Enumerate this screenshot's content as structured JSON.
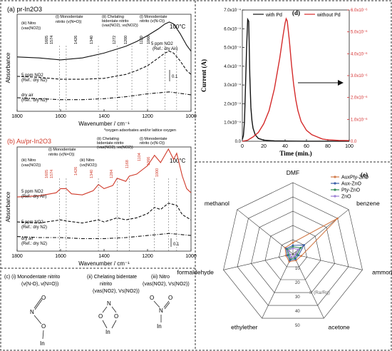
{
  "chart_data": [
    {
      "panel": "(a)",
      "type": "line",
      "title": "pr-In2O3",
      "temperature": "100°C",
      "xlabel": "Wavenumber / cm⁻¹",
      "ylabel": "Absorbance",
      "xlim": [
        1800,
        1000
      ],
      "x_ticks": [
        "1800",
        "1600",
        "1400",
        "1200",
        "1000"
      ],
      "scale_bar": "0.1",
      "series": [
        {
          "name": "5 ppm NO2 (Ref.: dry Air)",
          "style": "solid",
          "x": [
            1800,
            1700,
            1600,
            1500,
            1400,
            1300,
            1250,
            1200,
            1150,
            1120,
            1100,
            1080,
            1050,
            1020,
            1000
          ],
          "y": [
            0.56,
            0.55,
            0.53,
            0.55,
            0.6,
            0.67,
            0.72,
            0.78,
            0.85,
            0.9,
            0.92,
            0.9,
            0.8,
            0.68,
            0.62
          ]
        },
        {
          "name": "5 ppm NO2 (Ref.: dry N2)",
          "style": "dashed",
          "x": [
            1800,
            1700,
            1600,
            1500,
            1400,
            1300,
            1250,
            1200,
            1150,
            1120,
            1100,
            1080,
            1050,
            1020,
            1000
          ],
          "y": [
            0.36,
            0.35,
            0.33,
            0.33,
            0.34,
            0.38,
            0.42,
            0.47,
            0.55,
            0.6,
            0.62,
            0.6,
            0.52,
            0.42,
            0.38
          ]
        },
        {
          "name": "dry air (Ref.: dry N2)",
          "style": "dashdot",
          "x": [
            1800,
            1700,
            1600,
            1500,
            1400,
            1300,
            1200,
            1100,
            1000
          ],
          "y": [
            0.14,
            0.13,
            0.12,
            0.12,
            0.13,
            0.15,
            0.18,
            0.2,
            0.17
          ]
        }
      ],
      "annotations": [
        {
          "label": "(i) Monodentate nitrito (v(N=O))",
          "peaks": [
            "1426",
            "1340"
          ]
        },
        {
          "label": "(ii) Chelating bidentate nitrito (vas(NO2), vs(NO2))",
          "peaks": [
            "1272",
            "1200"
          ]
        },
        {
          "label": "(i) Monodentate nitrito (v(N-O))",
          "peaks": [
            "1120",
            "1066"
          ]
        },
        {
          "label": "(iii) Nitro (vas(NO2))",
          "peaks": [
            "1605",
            "1574"
          ]
        }
      ],
      "labels": {
        "title_prefix": "(a)",
        "t1": "(iii) Nitro",
        "t2": "(vas(NO2))",
        "t3": "(i) Monodentate",
        "t4": "nitrito (v(N=O))",
        "t5": "(ii) Chelating",
        "t6": "bidentate nitrito",
        "t7": "(vas(NO2), vs(NO2))",
        "t8": "(i) Monodentate",
        "t9": "nitrito (v(N-O))",
        "p1": "1605",
        "p2": "1574",
        "p3": "1426",
        "p4": "1340",
        "p5": "1272",
        "p6": "1200",
        "p7": "1120",
        "p8": "1066",
        "s1a": "5 ppm NO2",
        "s1b": "(Ref.: dry Air)",
        "s2a": "5 ppm NO2",
        "s2b": "(Ref.: dry N2)",
        "s3a": "dry air",
        "s3b": "(Ref.: dry N2)"
      }
    },
    {
      "panel": "(b)",
      "type": "line",
      "title": "Au/pr-In2O3",
      "temperature": "100°C",
      "note": "*oxygen adsorbates and/or lattice oxygen",
      "xlabel": "Wavenumber / cm⁻¹",
      "ylabel": "Absorbance",
      "xlim": [
        1800,
        1000
      ],
      "x_ticks": [
        "1800",
        "1600",
        "1400",
        "1200",
        "1000"
      ],
      "scale_bar": "0.1",
      "series": [
        {
          "name": "5 ppm NO2 (Ref.: dry Air)",
          "style": "solid",
          "color": "#d03a2a",
          "x": [
            1800,
            1700,
            1620,
            1600,
            1574,
            1550,
            1500,
            1450,
            1426,
            1400,
            1360,
            1340,
            1300,
            1284,
            1250,
            1200,
            1168,
            1140,
            1104,
            1080,
            1066,
            1040,
            1020,
            1000
          ],
          "y": [
            0.52,
            0.53,
            0.56,
            0.6,
            0.6,
            0.55,
            0.54,
            0.58,
            0.64,
            0.6,
            0.63,
            0.7,
            0.67,
            0.72,
            0.74,
            0.82,
            0.92,
            0.85,
            0.98,
            0.88,
            0.94,
            0.72,
            0.6,
            0.56
          ]
        },
        {
          "name": "5 ppm NO2 (Ref.: dry N2)",
          "style": "dashed",
          "x": [
            1800,
            1700,
            1600,
            1574,
            1500,
            1426,
            1400,
            1340,
            1300,
            1250,
            1200,
            1168,
            1140,
            1104,
            1066,
            1040,
            1000
          ],
          "y": [
            0.28,
            0.27,
            0.3,
            0.29,
            0.27,
            0.3,
            0.28,
            0.32,
            0.3,
            0.32,
            0.36,
            0.42,
            0.4,
            0.46,
            0.44,
            0.35,
            0.3
          ]
        },
        {
          "name": "dry air (Ref.: dry N2)",
          "style": "dashdot",
          "x": [
            1800,
            1700,
            1600,
            1500,
            1400,
            1300,
            1200,
            1100,
            1000
          ],
          "y": [
            0.14,
            0.13,
            0.13,
            0.12,
            0.12,
            0.13,
            0.15,
            0.17,
            0.15
          ]
        }
      ],
      "labels": {
        "title_prefix": "(b)",
        "t1": "(iii) Nitro",
        "t2": "(vas(NO2))",
        "t3": "(i) Monodentate",
        "t4": "nitrito (v(N=O))",
        "t5": "(ii) Chelating",
        "t6": "bidentate nitrito",
        "t7": "(vas(NO2), vs(NO2))",
        "t8": "(i) Monodentate",
        "t9": "nitrito (v(N-O))",
        "t10": "(iii) Nitro",
        "t11": "(vs(NO2))",
        "p1": "1605",
        "p2": "1574",
        "p3": "1426",
        "p4": "1340",
        "p5": "1284",
        "p6": "1168",
        "p7": "1104",
        "p8": "1066",
        "p9": "1000",
        "s1a": "5 ppm NO2",
        "s1b": "(Ref.: dry Air)",
        "s2a": "5 ppm NO2",
        "s2b": "(Ref.: dry N2)",
        "s3a": "dry air",
        "s3b": "(Ref.: dry N2)"
      }
    },
    {
      "panel": "(d)",
      "type": "line",
      "xlabel": "Time (min.)",
      "ylabel": "Current (A)",
      "xlim": [
        0,
        100
      ],
      "ylim": [
        0,
        0.0007
      ],
      "y2lim": [
        0,
        6e-06
      ],
      "x_ticks": [
        "0",
        "20",
        "40",
        "60",
        "80",
        "100"
      ],
      "y_ticks": [
        "0.0",
        "1.0x10⁻⁴",
        "2.0x10⁻⁴",
        "3.0x10⁻⁴",
        "4.0x10⁻⁴",
        "5.0x10⁻⁴",
        "6.0x10⁻⁴",
        "7.0x10⁻⁴"
      ],
      "y2_ticks": [
        "0.0",
        "1.0x10⁻⁶",
        "2.0x10⁻⁶",
        "3.0x10⁻⁶",
        "4.0x10⁻⁶",
        "5.0x10⁻⁶",
        "6.0x10⁻⁶"
      ],
      "legend_position": "top",
      "series": [
        {
          "name": "with Pd",
          "color": "#111111",
          "axis": "left",
          "x": [
            0,
            1,
            2,
            3,
            4,
            5,
            6,
            7,
            8,
            9,
            10,
            12,
            15,
            20,
            30,
            40,
            60,
            80,
            100
          ],
          "y": [
            1e-05,
            3e-05,
            0.0001,
            0.0003,
            0.0005,
            0.00065,
            0.00064,
            0.00035,
            0.00018,
            0.00011,
            7e-05,
            3.5e-05,
            1.5e-05,
            6e-06,
            2e-06,
            1e-06,
            5e-07,
            3e-07,
            2e-07
          ]
        },
        {
          "name": "without Pd",
          "color": "#d42a2a",
          "axis": "right",
          "x": [
            0,
            5,
            10,
            15,
            20,
            25,
            30,
            35,
            38,
            40,
            41,
            42,
            44,
            46,
            48,
            50,
            52,
            55,
            60,
            65,
            70,
            75,
            80,
            90,
            100
          ],
          "y": [
            0.0,
            5e-08,
            2e-07,
            4e-07,
            8e-07,
            1.4e-06,
            2.4e-06,
            3.8e-06,
            4.8e-06,
            5.4e-06,
            5.6e-06,
            5.5e-06,
            4.6e-06,
            3.5e-06,
            2.6e-06,
            1.9e-06,
            1.4e-06,
            9e-07,
            5e-07,
            3e-07,
            2e-07,
            1e-07,
            7e-08,
            4e-08,
            3e-08
          ]
        }
      ],
      "labels": {
        "title_prefix": "(d)"
      }
    },
    {
      "panel": "(e)",
      "type": "radar",
      "title": "",
      "axis_label": "S (Ra/Rg)",
      "categories": [
        "DMF",
        "benzene",
        "ammonia",
        "acetone",
        "ethylether",
        "formaldehyde",
        "methanol"
      ],
      "radial_ticks": [
        "0",
        "10",
        "20",
        "30",
        "40",
        "50"
      ],
      "rlim": [
        0,
        50
      ],
      "legend_position": "top-right",
      "series": [
        {
          "name": "AuxPty-ZnO",
          "color": "#d17b4a",
          "values": [
            8,
            40,
            6,
            5,
            6,
            5,
            7
          ]
        },
        {
          "name": "Aux-ZnO",
          "color": "#3a5fa8",
          "values": [
            6,
            10,
            4,
            4,
            5,
            4,
            6
          ]
        },
        {
          "name": "Pty-ZnO",
          "color": "#2e8b57",
          "values": [
            5,
            7,
            3,
            3,
            4,
            3,
            5
          ]
        },
        {
          "name": "ZnO",
          "color": "#9b7fd4",
          "values": [
            4,
            5,
            2,
            2,
            3,
            2,
            4
          ]
        }
      ],
      "labels": {
        "title_prefix": "(e)"
      }
    },
    {
      "panel": "(c)",
      "type": "diagram",
      "labels": {
        "title_prefix": "(c)",
        "i1": "(i) Monodentate nitrito",
        "i2": "(v(N-O), v(N=O))",
        "ii1": "(ii) Chelating bidentate",
        "ii2": "nitrito",
        "ii3": "(vas(NO2), Vs(NO2))",
        "iii1": "(iii) Nitro",
        "iii2": "(vas(NO2), Vs(NO2))",
        "O": "O",
        "N": "N",
        "In": "In"
      }
    }
  ]
}
